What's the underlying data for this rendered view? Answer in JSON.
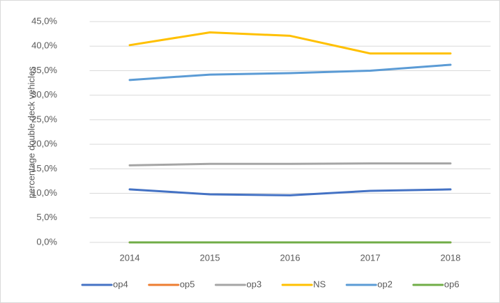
{
  "chart_data": {
    "type": "line",
    "y_label": "percentage double deck vehicles",
    "categories": [
      "2014",
      "2015",
      "2016",
      "2017",
      "2018"
    ],
    "series": [
      {
        "name": "op4",
        "color": "#4472c4",
        "values": [
          10.8,
          9.8,
          9.6,
          10.5,
          10.8
        ]
      },
      {
        "name": "op5",
        "color": "#ed7d31",
        "values": [
          0,
          0,
          0,
          0,
          0
        ]
      },
      {
        "name": "op3",
        "color": "#a5a5a5",
        "values": [
          15.7,
          16.0,
          16.0,
          16.1,
          16.1
        ]
      },
      {
        "name": "NS",
        "color": "#ffc000",
        "values": [
          40.2,
          42.8,
          42.1,
          38.5,
          38.5
        ]
      },
      {
        "name": "op2",
        "color": "#5b9bd5",
        "values": [
          33.1,
          34.2,
          34.5,
          35.0,
          36.2
        ]
      },
      {
        "name": "op6",
        "color": "#70ad47",
        "values": [
          0,
          0,
          0,
          0,
          0
        ]
      }
    ],
    "ylim": [
      0,
      45
    ],
    "yticks": [
      {
        "value": 0,
        "label": "0,0%"
      },
      {
        "value": 5,
        "label": "5,0%"
      },
      {
        "value": 10,
        "label": "10,0%"
      },
      {
        "value": 15,
        "label": "15,0%"
      },
      {
        "value": 20,
        "label": "20,0%"
      },
      {
        "value": 25,
        "label": "25,0%"
      },
      {
        "value": 30,
        "label": "30,0%"
      },
      {
        "value": 35,
        "label": "35,0%"
      },
      {
        "value": 40,
        "label": "40,0%"
      },
      {
        "value": 45,
        "label": "45,0%"
      }
    ],
    "grid": true,
    "legend": "bottom"
  }
}
